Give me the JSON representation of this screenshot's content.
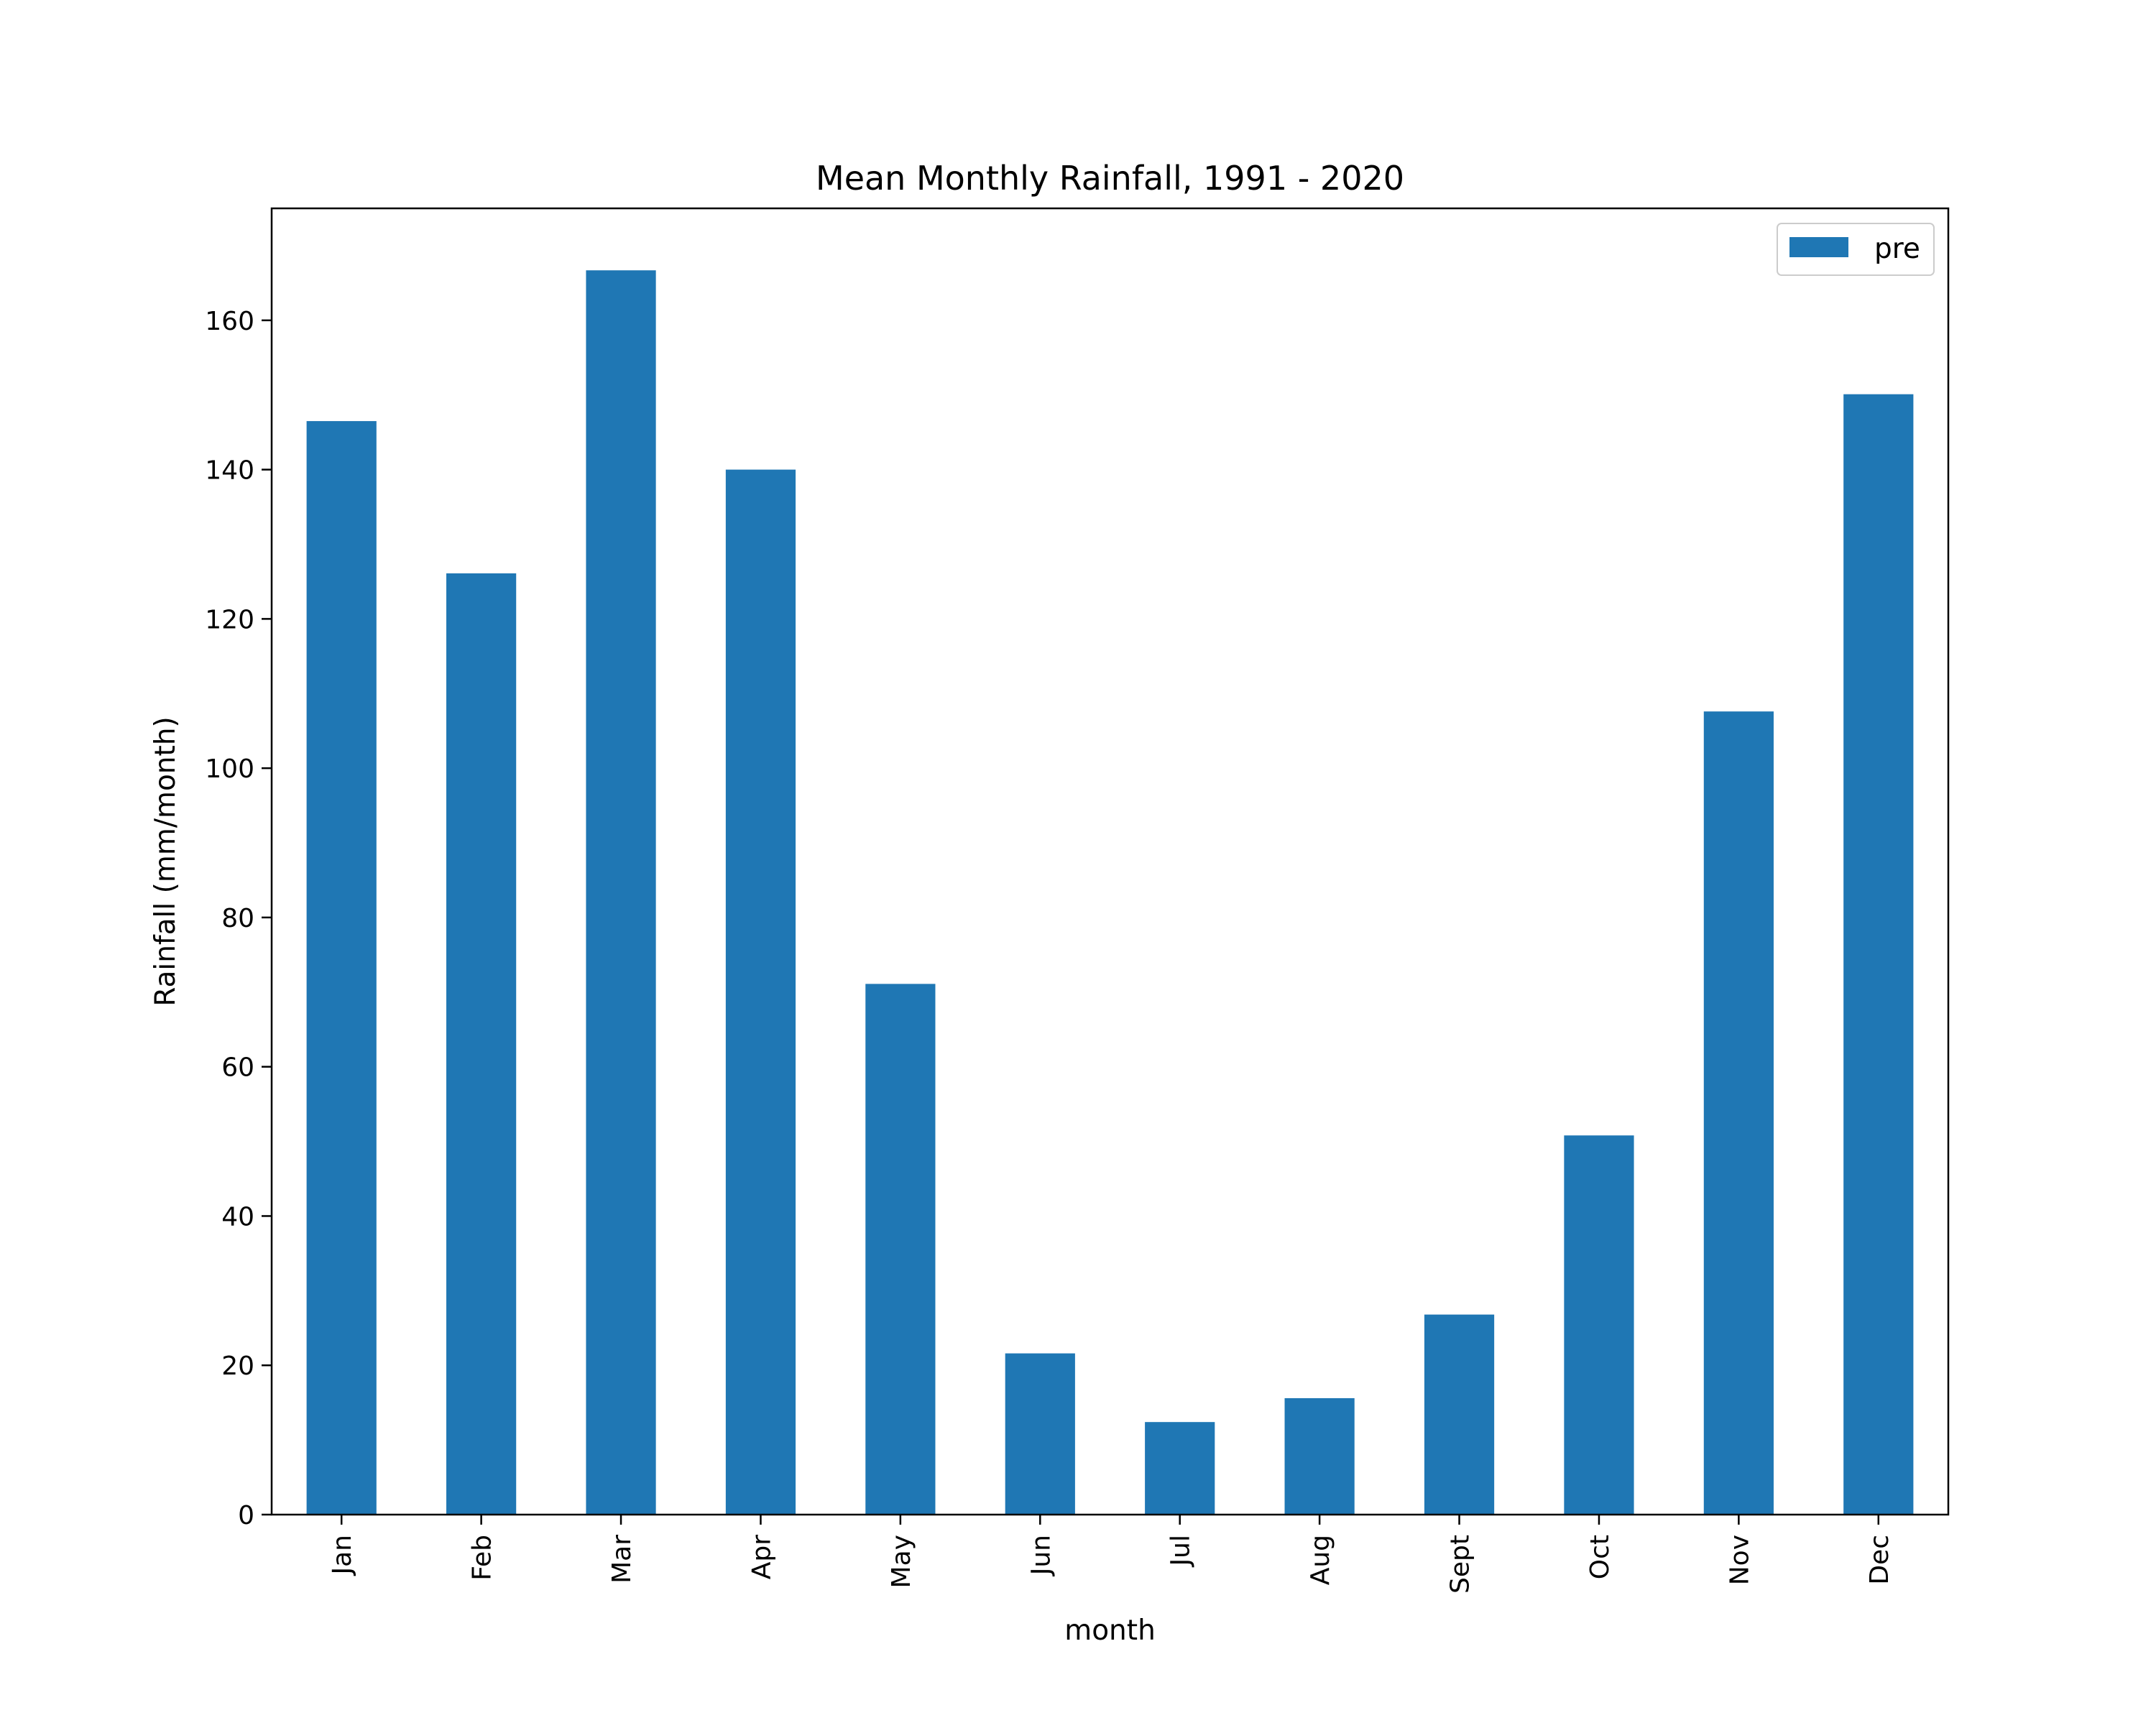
{
  "chart_data": {
    "type": "bar",
    "title": "Mean Monthly Rainfall, 1991 - 2020",
    "xlabel": "month",
    "ylabel": "Rainfall (mm/month)",
    "categories": [
      "Jan",
      "Feb",
      "Mar",
      "Apr",
      "May",
      "Jun",
      "Jul",
      "Aug",
      "Sept",
      "Oct",
      "Nov",
      "Dec"
    ],
    "series": [
      {
        "name": "pre",
        "color": "#1f77b4",
        "values": [
          146.5,
          126.1,
          166.7,
          140.0,
          71.1,
          21.6,
          12.4,
          15.6,
          26.8,
          50.8,
          107.6,
          150.1
        ]
      }
    ],
    "ylim": [
      0,
      175
    ],
    "yticks": [
      0,
      20,
      40,
      60,
      80,
      100,
      120,
      140,
      160
    ],
    "grid": false,
    "legend": "top-right",
    "xtick_rotation": "vertical"
  }
}
